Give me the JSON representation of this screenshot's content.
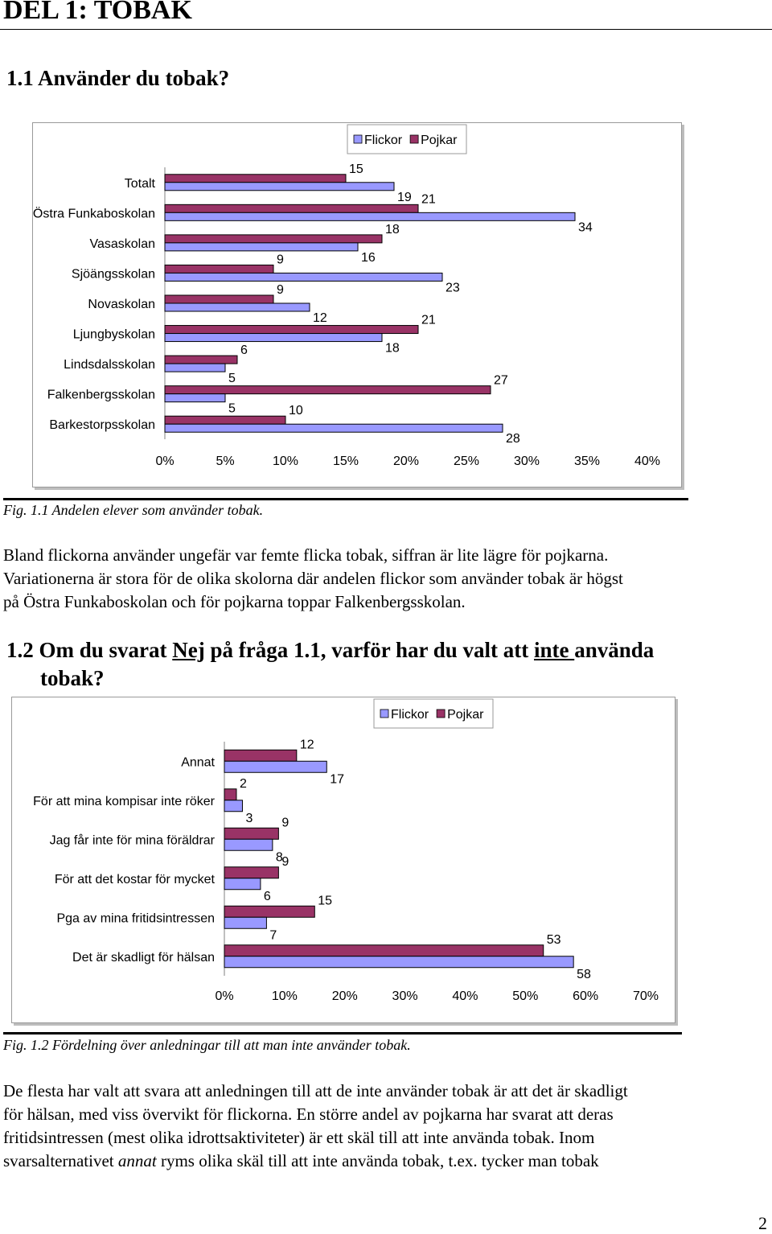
{
  "page": {
    "heading": "DEL 1: TOBAK",
    "page_number": "2"
  },
  "section_1_1": {
    "title": "1.1 Använder du tobak?"
  },
  "figure_1": {
    "caption": "Fig. 1.1 Andelen elever som använder tobak."
  },
  "paragraph_1": [
    "Bland flickorna använder ungefär var femte flicka tobak, siffran är lite lägre för pojkarna.",
    "Variationerna är stora för de olika skolorna där andelen flickor som använder tobak är högst",
    "på Östra Funkaboskolan och för pojkarna toppar Falkenbergsskolan."
  ],
  "section_1_2": {
    "prefix": "1.2 Om du svarat ",
    "nej": "Nej",
    "middle": " på fråga 1.1, varför har du valt att ",
    "inte": "inte ",
    "suffix": "använda",
    "line2": "tobak?"
  },
  "figure_2": {
    "caption": "Fig. 1.2 Fördelning över anledningar till att man inte använder tobak."
  },
  "paragraph_2": {
    "line1": "De flesta har valt att svara att anledningen till att de inte använder tobak är att det är skadligt",
    "line2": "för hälsan, med viss övervikt för flickorna. En större andel av pojkarna har svarat att deras",
    "line3": "fritidsintressen (mest olika idrottsaktiviteter) är ett skäl till att inte använda tobak. Inom",
    "line4_a": "svarsalternativet ",
    "line4_em": "annat",
    "line4_b": " ryms olika skäl till att inte använda tobak, t.ex. tycker man tobak"
  },
  "colors": {
    "flickor": "#9999ff",
    "pojkar": "#993366"
  },
  "chart_data": [
    {
      "type": "bar",
      "orientation": "horizontal",
      "categories": [
        "Totalt",
        "Östra Funkaboskolan",
        "Vasaskolan",
        "Sjöängsskolan",
        "Novaskolan",
        "Ljungbyskolan",
        "Lindsdalsskolan",
        "Falkenbergsskolan",
        "Barkestorpsskolan"
      ],
      "series": [
        {
          "name": "Flickor",
          "color": "#9999ff",
          "values": [
            19,
            34,
            16,
            23,
            12,
            18,
            5,
            5,
            28
          ]
        },
        {
          "name": "Pojkar",
          "color": "#993366",
          "values": [
            15,
            21,
            18,
            9,
            9,
            21,
            6,
            27,
            10
          ]
        }
      ],
      "xlim": [
        0,
        40
      ],
      "xticks": [
        "0%",
        "5%",
        "10%",
        "15%",
        "20%",
        "25%",
        "30%",
        "35%",
        "40%"
      ],
      "legend": "top",
      "legend_labels": [
        "Flickor",
        "Pojkar"
      ]
    },
    {
      "type": "bar",
      "orientation": "horizontal",
      "categories": [
        "Annat",
        "För att mina kompisar inte röker",
        "Jag får inte för mina föräldrar",
        "För att det kostar för mycket",
        "Pga av mina fritidsintressen",
        "Det är skadligt för hälsan"
      ],
      "series": [
        {
          "name": "Flickor",
          "color": "#9999ff",
          "values": [
            17,
            3,
            8,
            6,
            7,
            58
          ]
        },
        {
          "name": "Pojkar",
          "color": "#993366",
          "values": [
            12,
            2,
            9,
            9,
            15,
            53
          ]
        }
      ],
      "xlim": [
        0,
        70
      ],
      "xticks": [
        "0%",
        "10%",
        "20%",
        "30%",
        "40%",
        "50%",
        "60%",
        "70%"
      ],
      "legend": "top",
      "legend_labels": [
        "Flickor",
        "Pojkar"
      ]
    }
  ]
}
